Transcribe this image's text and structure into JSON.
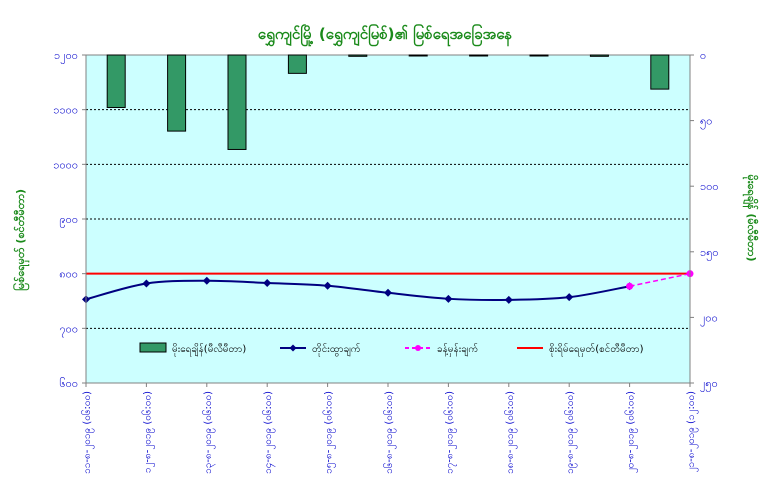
{
  "chart_data": {
    "type": "bar+line",
    "title": "ရွှေကျင်မြို့ (ရွှေကျင်မြစ်)၏ မြစ်ရေအခြေအနေ",
    "ylabel_left": "မြစ်ရေမှတ် (စင်တီမီတာ)",
    "ylabel_right": "မိုးရေချိန် (မီလီမီတာ)",
    "y_left": {
      "min": 600,
      "max": 1200,
      "ticks": [
        600,
        700,
        800,
        900,
        1000,
        1100,
        1200
      ],
      "tick_labels": [
        "၆၀၀",
        "၇၀၀",
        "၈၀၀",
        "၉၀၀",
        "၁၀၀၀",
        "၁၁၀၀",
        "၁၂၀၀"
      ]
    },
    "y_right": {
      "min": 0,
      "max": 250,
      "ticks": [
        0,
        50,
        100,
        150,
        200,
        250
      ],
      "tick_labels": [
        "၀",
        "၅၀",
        "၁၀၀",
        "၁၅၀",
        "၂၀၀",
        "၂၅၀"
      ],
      "inverted": true
    },
    "categories": [
      "၁၁-၈-၂၀၁၉ (၀၆:၀၀)",
      "၁၂-၈-၂၀၁၉ (၀၆:၀၀)",
      "၁၃-၈-၂၀၁၉ (၀၆:၀၀)",
      "၁၄-၈-၂၀၁၉ (၀၆:၀၀)",
      "၁၅-၈-၂၀၁၉ (၀၆:၀၀)",
      "၁၆-၈-၂၀၁၉ (၀၆:၀၀)",
      "၁၇-၈-၂၀၁၉ (၀၆:၀၀)",
      "၁၈-၈-၂၀၁၉ (၀၆:၀၀)",
      "၁၉-၈-၂၀၁၉ (၀၆:၀၀)",
      "၂၀-၈-၂၀၁၉ (၀၆:၀၀)",
      "၂၁-၈-၂၀၁၉ (၁၂:၀၀)"
    ],
    "series": [
      {
        "name": "မိုးရေချိန်(မီလီမီတာ)",
        "type": "bar",
        "axis": "right",
        "color": "#339966",
        "values": [
          40,
          58,
          72,
          14,
          1,
          0,
          0,
          0,
          1,
          26,
          null
        ]
      },
      {
        "name": "တိုင်းထွာချက်",
        "type": "line",
        "axis": "left",
        "color": "#000080",
        "values": [
          753,
          782,
          787,
          783,
          778,
          765,
          754,
          752,
          757,
          777,
          null
        ]
      },
      {
        "name": "ခန့်မှန်းချက်",
        "type": "line-dashed",
        "axis": "left",
        "color": "#ff00ff",
        "values": [
          null,
          null,
          null,
          null,
          null,
          null,
          null,
          null,
          null,
          777,
          800
        ]
      },
      {
        "name": "စိုးရိမ်ရေမှတ်(စင်တီမီတာ)",
        "type": "hline",
        "axis": "left",
        "color": "#ff0000",
        "value": 800
      }
    ],
    "grid": true,
    "legend": "bottom-inside"
  }
}
